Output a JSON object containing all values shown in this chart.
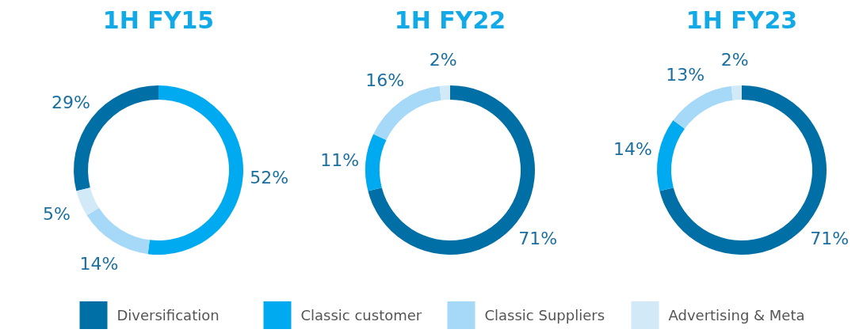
{
  "chart_data": [
    {
      "type": "donut",
      "title": "1H FY15",
      "categories": [
        "Diversification",
        "Classic customer",
        "Classic Suppliers",
        "Advertising & Meta"
      ],
      "values": [
        29,
        52,
        14,
        5
      ],
      "colors": [
        "#006fa6",
        "#00aaf0",
        "#a6d8f7",
        "#d2eaf8"
      ],
      "value_labels": [
        "29%",
        "52%",
        "14%",
        "5%"
      ],
      "legend": "bottom"
    },
    {
      "type": "donut",
      "title": "1H FY22",
      "categories": [
        null,
        null,
        null,
        null
      ],
      "values": [
        71,
        11,
        16,
        2
      ],
      "colors": [
        "#006fa6",
        "#00aaf0",
        "#a6d8f7",
        "#d2eaf8"
      ],
      "value_labels": [
        "71%",
        "11%",
        "16%",
        "2%"
      ]
    },
    {
      "type": "donut",
      "title": "1H FY23",
      "categories": [
        null,
        null,
        null,
        null
      ],
      "values": [
        71,
        14,
        13,
        2
      ],
      "colors": [
        "#006fa6",
        "#00aaf0",
        "#a6d8f7",
        "#d2eaf8"
      ],
      "value_labels": [
        "71%",
        "14%",
        "13%",
        "2%"
      ]
    }
  ]
}
